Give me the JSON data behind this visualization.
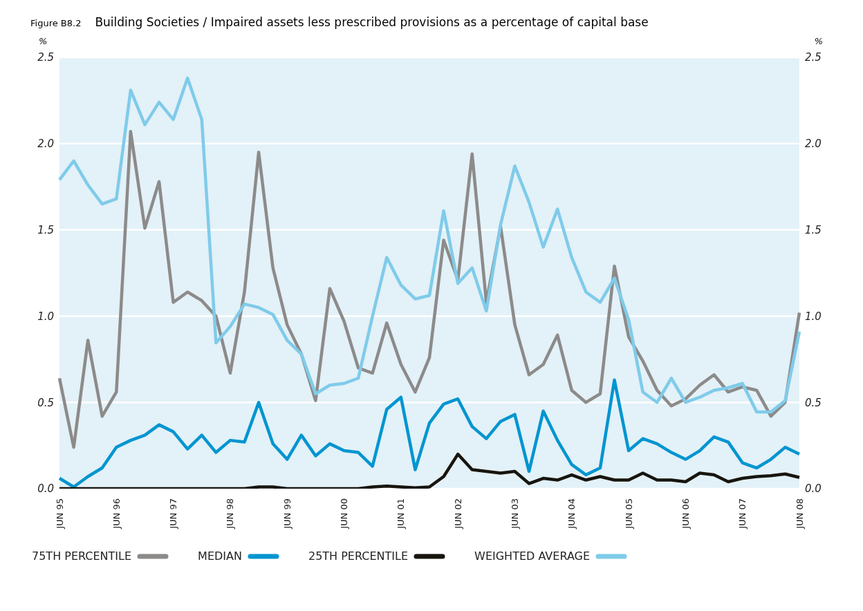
{
  "chart_data": {
    "type": "line",
    "title": "Building Societies / Impaired assets less prescribed provisions as a percentage of capital base",
    "annotations": [
      "Figure B8.2"
    ],
    "ylabel": "%",
    "y2label": "%",
    "categories": [
      "JUN 95",
      null,
      null,
      null,
      "JUN 96",
      null,
      null,
      null,
      "JUN 97",
      null,
      null,
      null,
      "JUN 98",
      null,
      null,
      null,
      "JUN 99",
      null,
      null,
      null,
      "JUN 00",
      null,
      null,
      null,
      "JUN 01",
      null,
      null,
      null,
      "JUN 02",
      null,
      null,
      null,
      "JUN 03",
      null,
      null,
      null,
      "JUN 04",
      null,
      null,
      null,
      "JUN 05",
      null,
      null,
      null,
      "JUN 06",
      null,
      null,
      null,
      "JUN 07",
      null,
      null,
      null,
      "JUN 08"
    ],
    "series": [
      {
        "name": "75TH PERCENTILE",
        "color": "#8c8b8a",
        "values": [
          0.64,
          0.24,
          0.86,
          0.42,
          0.56,
          2.07,
          1.51,
          1.78,
          1.08,
          1.14,
          1.09,
          1.0,
          0.67,
          1.14,
          1.95,
          1.28,
          0.95,
          0.78,
          0.51,
          1.16,
          0.97,
          0.7,
          0.67,
          0.96,
          0.72,
          0.56,
          0.76,
          1.44,
          1.21,
          1.94,
          1.08,
          1.52,
          0.95,
          0.66,
          0.72,
          0.89,
          0.57,
          0.5,
          0.55,
          1.29,
          0.88,
          0.74,
          0.57,
          0.48,
          0.52,
          0.6,
          0.66,
          0.56,
          0.59,
          0.57,
          0.42,
          0.5,
          1.02
        ]
      },
      {
        "name": "MEDIAN",
        "color": "#0095d0",
        "values": [
          0.06,
          0.01,
          0.07,
          0.12,
          0.24,
          0.28,
          0.31,
          0.37,
          0.33,
          0.23,
          0.31,
          0.21,
          0.28,
          0.27,
          0.5,
          0.26,
          0.17,
          0.31,
          0.19,
          0.26,
          0.22,
          0.21,
          0.13,
          0.46,
          0.53,
          0.11,
          0.38,
          0.49,
          0.52,
          0.36,
          0.29,
          0.39,
          0.43,
          0.1,
          0.45,
          0.28,
          0.14,
          0.08,
          0.12,
          0.63,
          0.22,
          0.29,
          0.26,
          0.21,
          0.17,
          0.22,
          0.3,
          0.27,
          0.15,
          0.12,
          0.17,
          0.24,
          0.2
        ]
      },
      {
        "name": "25TH PERCENTILE",
        "color": "#17150e",
        "values": [
          0.0,
          0.0,
          0.0,
          0.0,
          0.0,
          0.0,
          0.0,
          0.0,
          0.0,
          0.0,
          0.0,
          0.0,
          0.0,
          0.0,
          0.01,
          0.01,
          0.0,
          0.0,
          0.0,
          0.0,
          0.0,
          0.0,
          0.01,
          0.015,
          0.01,
          0.005,
          0.01,
          0.07,
          0.2,
          0.11,
          0.1,
          0.09,
          0.1,
          0.03,
          0.06,
          0.05,
          0.08,
          0.05,
          0.07,
          0.05,
          0.05,
          0.09,
          0.05,
          0.05,
          0.04,
          0.09,
          0.08,
          0.04,
          0.06,
          0.07,
          0.075,
          0.085,
          0.065
        ]
      },
      {
        "name": "WEIGHTED AVERAGE",
        "color": "#7fcbea",
        "values": [
          1.79,
          1.9,
          1.76,
          1.65,
          1.68,
          2.31,
          2.11,
          2.24,
          2.14,
          2.38,
          2.14,
          0.845,
          0.94,
          1.07,
          1.05,
          1.01,
          0.86,
          0.78,
          0.55,
          0.6,
          0.61,
          0.64,
          1.0,
          1.34,
          1.18,
          1.1,
          1.12,
          1.61,
          1.19,
          1.28,
          1.03,
          1.53,
          1.87,
          1.66,
          1.4,
          1.62,
          1.34,
          1.14,
          1.08,
          1.22,
          0.98,
          0.56,
          0.5,
          0.64,
          0.5,
          0.53,
          0.57,
          0.585,
          0.61,
          0.445,
          0.445,
          0.51,
          0.91
        ]
      }
    ],
    "ylim": [
      0,
      2.5
    ],
    "yticks": [
      {
        "value": 0,
        "label": "0.0"
      },
      {
        "value": 0.5,
        "label": "0.5"
      },
      {
        "value": 1,
        "label": "1.0"
      },
      {
        "value": 1.5,
        "label": "1.5"
      },
      {
        "value": 2,
        "label": "2.0"
      },
      {
        "value": 2.5,
        "label": "2.5"
      }
    ],
    "y2lim": [
      0,
      2.5
    ],
    "y2ticks": [
      {
        "value": 0,
        "label": "0.0"
      },
      {
        "value": 0.5,
        "label": "0.5"
      },
      {
        "value": 1,
        "label": "1.0"
      },
      {
        "value": 1.5,
        "label": "1.5"
      },
      {
        "value": 2,
        "label": "2.0"
      },
      {
        "value": 2.5,
        "label": "2.5"
      }
    ],
    "grid": "y",
    "legend": "bottom",
    "marker": "none",
    "line_style": "solid"
  }
}
